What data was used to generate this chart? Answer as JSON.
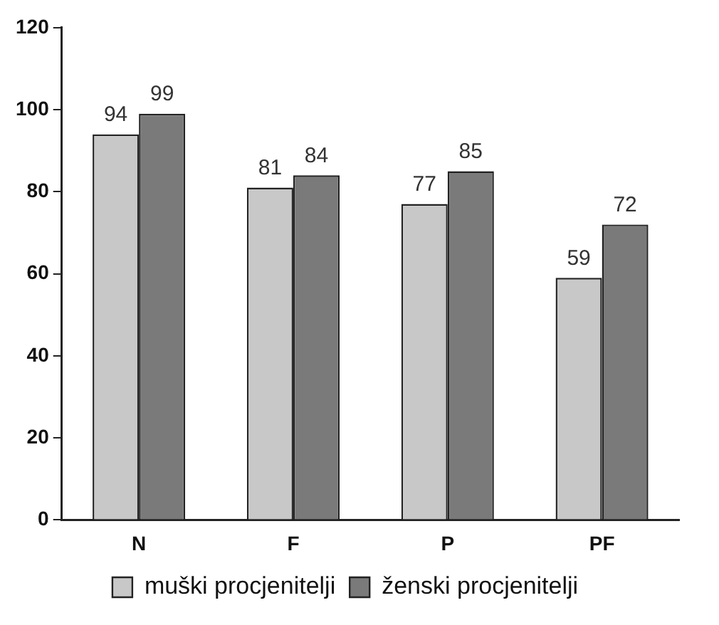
{
  "chart_data": {
    "type": "bar",
    "categories": [
      "N",
      "F",
      "P",
      "PF"
    ],
    "series": [
      {
        "name": "muški procjenitelji",
        "color": "#c8c8c8",
        "values": [
          94,
          81,
          77,
          59
        ]
      },
      {
        "name": "ženski procjenitelji",
        "color": "#7a7a7a",
        "values": [
          99,
          84,
          85,
          72
        ]
      }
    ],
    "ylim": [
      0,
      120
    ],
    "yticks": [
      0,
      20,
      40,
      60,
      80,
      100,
      120
    ],
    "grid": false,
    "legend": "bottom",
    "data_labels": true
  }
}
